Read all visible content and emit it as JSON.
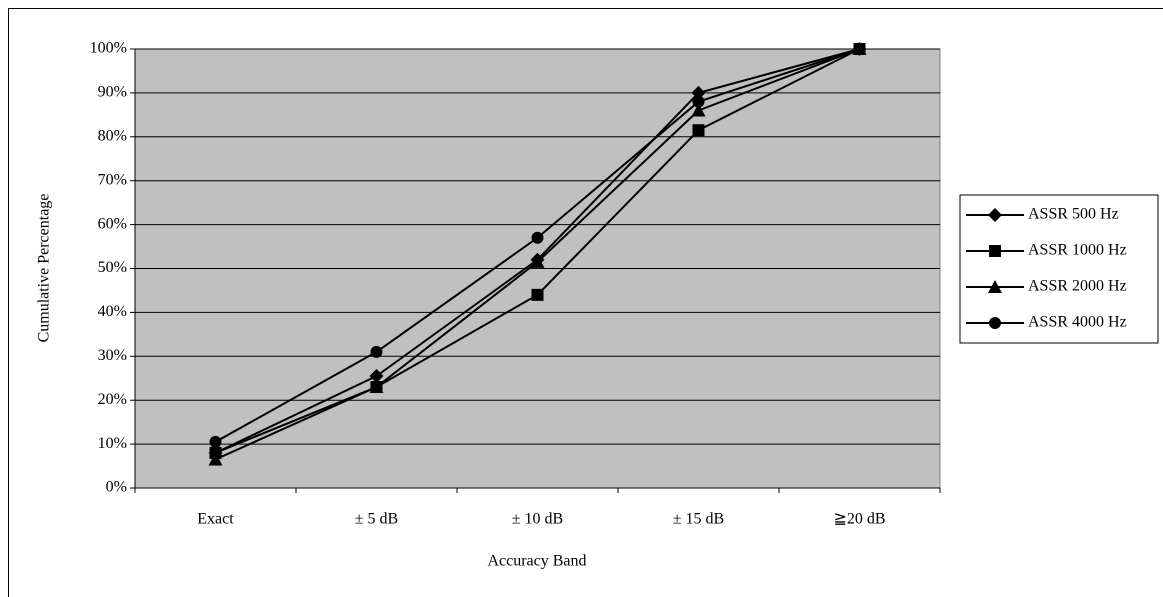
{
  "chart_data": {
    "type": "line",
    "x_label": "Accuracy Band",
    "y_label": "Cumulative Percentage",
    "categories": [
      "Exact",
      "± 5 dB",
      "± 10  dB",
      "± 15  dB",
      "≧20 dB"
    ],
    "series": [
      {
        "name": "ASSR 500 Hz",
        "color": "#000000",
        "marker": "diamond",
        "values": [
          8,
          25.5,
          52,
          90,
          100
        ]
      },
      {
        "name": "ASSR 1000 Hz",
        "color": "#000000",
        "marker": "square",
        "values": [
          8,
          23,
          44,
          81.5,
          100
        ]
      },
      {
        "name": "ASSR 2000 Hz",
        "color": "#000000",
        "marker": "triangle",
        "values": [
          6.5,
          23,
          51.5,
          86,
          100
        ]
      },
      {
        "name": "ASSR 4000 Hz",
        "color": "#000000",
        "marker": "circle",
        "values": [
          10.5,
          31,
          57,
          88,
          100
        ]
      }
    ],
    "ylim": [
      0,
      100
    ],
    "yticks": [
      {
        "value": 0,
        "label": "0%"
      },
      {
        "value": 10,
        "label": "10%"
      },
      {
        "value": 20,
        "label": "20%"
      },
      {
        "value": 30,
        "label": "30%"
      },
      {
        "value": 40,
        "label": "40%"
      },
      {
        "value": 50,
        "label": "50%"
      },
      {
        "value": 60,
        "label": "60%"
      },
      {
        "value": 70,
        "label": "70%"
      },
      {
        "value": 80,
        "label": "80%"
      },
      {
        "value": 90,
        "label": "90%"
      },
      {
        "value": 100,
        "label": "100%"
      }
    ],
    "grid": true,
    "plot_background": "#c0c0c0",
    "legend": "right"
  }
}
